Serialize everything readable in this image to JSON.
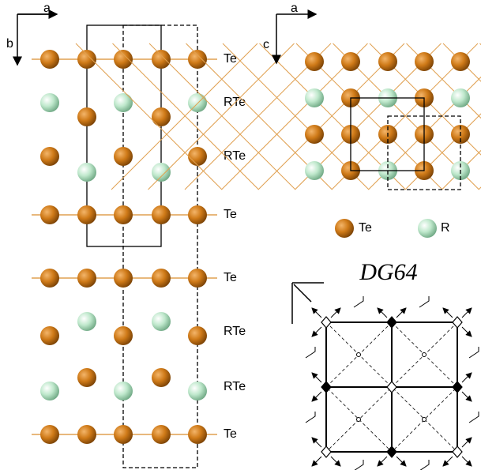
{
  "left_panel": {
    "axes": [
      "a",
      "b"
    ],
    "layers": [
      "Te",
      "RTe",
      "RTe",
      "Te",
      "Te",
      "RTe",
      "RTe",
      "Te"
    ]
  },
  "right_panel": {
    "axes": [
      "a",
      "c"
    ]
  },
  "legend": [
    "Te",
    "R"
  ],
  "symmetry": {
    "title": "DG64"
  }
}
